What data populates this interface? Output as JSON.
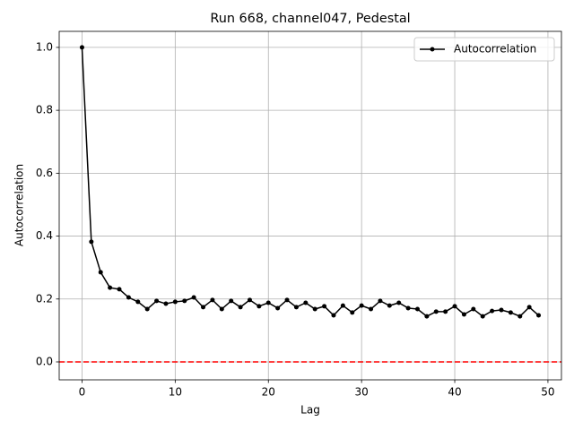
{
  "chart_data": {
    "type": "line",
    "title": "Run 668, channel047, Pedestal",
    "x_label": "Lag",
    "y_label": "Autocorrelation",
    "x": [
      0,
      1,
      2,
      3,
      4,
      5,
      6,
      7,
      8,
      9,
      10,
      11,
      12,
      13,
      14,
      15,
      16,
      17,
      18,
      19,
      20,
      21,
      22,
      23,
      24,
      25,
      26,
      27,
      28,
      29,
      30,
      31,
      32,
      33,
      34,
      35,
      36,
      37,
      38,
      39,
      40,
      41,
      42,
      43,
      44,
      45,
      46,
      47,
      48,
      49
    ],
    "series": [
      {
        "name": "Autocorrelation",
        "color": "#000000",
        "values": [
          1.0,
          0.382,
          0.285,
          0.236,
          0.231,
          0.205,
          0.191,
          0.168,
          0.194,
          0.185,
          0.191,
          0.194,
          0.205,
          0.174,
          0.197,
          0.168,
          0.194,
          0.174,
          0.197,
          0.177,
          0.188,
          0.171,
          0.197,
          0.174,
          0.188,
          0.168,
          0.177,
          0.148,
          0.179,
          0.157,
          0.179,
          0.168,
          0.194,
          0.179,
          0.188,
          0.171,
          0.168,
          0.145,
          0.16,
          0.16,
          0.177,
          0.151,
          0.168,
          0.145,
          0.162,
          0.165,
          0.157,
          0.145,
          0.174,
          0.148
        ]
      }
    ],
    "hlines": [
      {
        "value": 0,
        "color": "#ff0000"
      }
    ],
    "xlim": [
      -2.45,
      51.45
    ],
    "ylim": [
      -0.057,
      1.051
    ],
    "xticks": [
      0,
      10,
      20,
      30,
      40,
      50
    ],
    "yticks": [
      {
        "value": 0,
        "label": "0.0"
      },
      0.2,
      0.4,
      0.6,
      0.8,
      {
        "value": 1,
        "label": "1.0"
      }
    ],
    "grid": true,
    "legend": "upper-right"
  }
}
